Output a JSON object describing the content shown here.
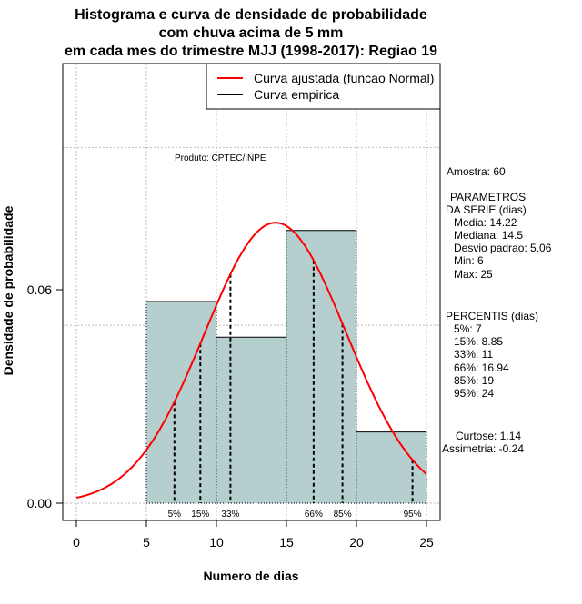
{
  "chart_data": {
    "type": "bar",
    "title_lines": [
      "Histograma e curva de densidade de probabilidade",
      "com chuva acima de 5 mm",
      "em cada mes do trimestre MJJ (1998-2017): Regiao 19"
    ],
    "xlabel": "Numero de dias",
    "ylabel": "Densidade de probabilidade",
    "xlim": [
      0,
      25
    ],
    "ylim": [
      0,
      0.06
    ],
    "x_ticks": [
      "0",
      "5",
      "10",
      "15",
      "20",
      "25"
    ],
    "y_ticks": [
      "0.00",
      "0.06"
    ],
    "bins": [
      [
        5,
        10
      ],
      [
        10,
        15
      ],
      [
        15,
        20
      ],
      [
        20,
        25
      ]
    ],
    "values": [
      0.05667,
      0.04667,
      0.07667,
      0.02
    ],
    "normal": {
      "mean": 14.22,
      "sd": 5.06
    },
    "percentiles": [
      {
        "label": "5%",
        "x": 7
      },
      {
        "label": "15%",
        "x": 8.85
      },
      {
        "label": "33%",
        "x": 11
      },
      {
        "label": "66%",
        "x": 16.94
      },
      {
        "label": "85%",
        "x": 19
      },
      {
        "label": "95%",
        "x": 24
      }
    ],
    "legend": [
      "Curva ajustada (funcao Normal)",
      "Curva empirica"
    ],
    "legend_position": "top-right",
    "annotation": "Produto: CPTEC/INPE",
    "colors": {
      "bar": "#b5cfcf",
      "curve": "#ff0000"
    }
  },
  "stats": {
    "lines": [
      "Amostra: 60",
      "PARAMETROS",
      "DA SERIE (dias)",
      "Media: 14.22",
      "Mediana: 14.5",
      "Desvio padrao: 5.06",
      "Min: 6",
      "Max: 25",
      "PERCENTIS (dias)",
      "5%: 7",
      "15%: 8.85",
      "33%: 11",
      "66%: 16.94",
      "85%: 19",
      "95%: 24",
      "Curtose: 1.14",
      "Assimetria: -0.24"
    ]
  }
}
